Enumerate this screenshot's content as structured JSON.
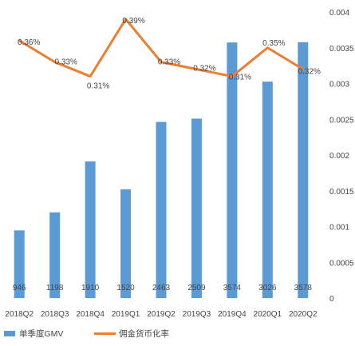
{
  "chart_data": {
    "type": "bar+line",
    "categories": [
      "2018Q2",
      "2018Q3",
      "2018Q4",
      "2019Q1",
      "2019Q2",
      "2019Q3",
      "2019Q4",
      "2020Q1",
      "2020Q2"
    ],
    "series": [
      {
        "name": "单季度GMV",
        "type": "bar",
        "axis": "left",
        "color": "#5B9BD5",
        "values": [
          946,
          1198,
          1910,
          1520,
          2463,
          2509,
          3574,
          3026,
          3578
        ],
        "labels": [
          "946",
          "1198",
          "1910",
          "1520",
          "2463",
          "2509",
          "3574",
          "3026",
          "3578"
        ]
      },
      {
        "name": "佣金货币化率",
        "type": "line",
        "axis": "right",
        "color": "#ED7D31",
        "values": [
          0.0036,
          0.0033,
          0.0031,
          0.0039,
          0.0033,
          0.0032,
          0.0031,
          0.0035,
          0.0032
        ],
        "labels": [
          "0.36%",
          "0.33%",
          "0.31%",
          "0.39%",
          "0.33%",
          "0.32%",
          "0.31%",
          "0.35%",
          "0.32%"
        ]
      }
    ],
    "y_left": {
      "min": 0,
      "max": 4000
    },
    "y_right": {
      "min": 0,
      "max": 0.004,
      "ticks": [
        "0",
        "0.0005",
        "0.001",
        "0.0015",
        "0.002",
        "0.0025",
        "0.003",
        "0.0035",
        "0.004"
      ]
    },
    "legend_position": "bottom-left",
    "grid": false
  }
}
